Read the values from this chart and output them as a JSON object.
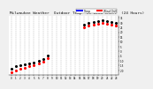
{
  "title": "Milwaukee Weather  Outdoor Temp  vs Wind Chill  (24 Hours)",
  "title_fontsize": 3.2,
  "background_color": "#f0f0f0",
  "plot_bg_color": "#ffffff",
  "grid_color": "#aaaaaa",
  "hours": [
    0,
    1,
    2,
    3,
    4,
    5,
    6,
    7,
    8,
    9,
    10,
    11,
    12,
    13,
    14,
    15,
    16,
    17,
    18,
    19,
    20,
    21,
    22,
    23
  ],
  "temp_values": [
    null,
    null,
    null,
    null,
    null,
    null,
    null,
    null,
    null,
    null,
    null,
    null,
    null,
    null,
    null,
    null,
    null,
    null,
    null,
    null,
    null,
    null,
    null,
    null
  ],
  "wind_chill_values": [
    null,
    null,
    null,
    null,
    null,
    null,
    null,
    null,
    null,
    null,
    null,
    null,
    null,
    null,
    null,
    null,
    null,
    null,
    null,
    null,
    null,
    null,
    null,
    null
  ],
  "raw_temp": [
    -18,
    -16,
    -15,
    -14,
    -13,
    -12,
    -10,
    -8,
    -4,
    null,
    null,
    null,
    null,
    null,
    null,
    null,
    28,
    30,
    31,
    32,
    33,
    32,
    31,
    30
  ],
  "raw_wc": [
    -22,
    -20,
    -18,
    -17,
    -16,
    -15,
    -13,
    -11,
    -7,
    null,
    null,
    null,
    null,
    null,
    null,
    null,
    25,
    27,
    28,
    29,
    30,
    29,
    28,
    27
  ],
  "temp_color": "#000000",
  "wc_color_cold": "#ff0000",
  "wc_color_warm": "#0000ff",
  "legend_temp_color": "#0000ff",
  "legend_wc_color": "#ff0000",
  "xlim": [
    -0.5,
    23.5
  ],
  "ylim": [
    -25,
    37
  ],
  "ytick_vals": [
    -20,
    -15,
    -10,
    -5,
    0,
    5,
    10,
    15,
    20,
    25,
    30,
    35
  ],
  "ytick_labels": [
    "-20",
    "-15",
    "-10",
    "-5",
    "0",
    "5",
    "10",
    "15",
    "20",
    "25",
    "30",
    "35"
  ],
  "xtick_vals": [
    0,
    1,
    2,
    3,
    4,
    5,
    6,
    7,
    8,
    9,
    10,
    11,
    12,
    13,
    14,
    15,
    16,
    17,
    18,
    19,
    20,
    21,
    22,
    23
  ],
  "legend_temp_label": "Temp",
  "legend_wc_label": "Wind Chill",
  "dot_size": 4
}
